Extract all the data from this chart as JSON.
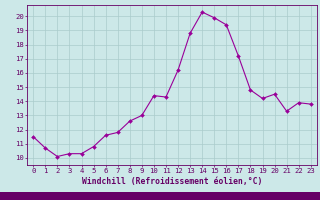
{
  "x": [
    0,
    1,
    2,
    3,
    4,
    5,
    6,
    7,
    8,
    9,
    10,
    11,
    12,
    13,
    14,
    15,
    16,
    17,
    18,
    19,
    20,
    21,
    22,
    23
  ],
  "y": [
    11.5,
    10.7,
    10.1,
    10.3,
    10.3,
    10.8,
    11.6,
    11.8,
    12.6,
    13.0,
    14.4,
    14.3,
    16.2,
    18.8,
    20.3,
    19.9,
    19.4,
    17.2,
    14.8,
    14.2,
    14.5,
    13.3,
    13.9,
    13.8
  ],
  "line_color": "#990099",
  "marker": "D",
  "marker_size": 2.0,
  "bg_color": "#cce8e8",
  "grid_color": "#aacccc",
  "axis_label_color": "#660066",
  "tick_color": "#660066",
  "xlabel": "Windchill (Refroidissement éolien,°C)",
  "bottom_bar_color": "#660066",
  "xlim": [
    -0.5,
    23.5
  ],
  "ylim": [
    9.5,
    20.8
  ],
  "yticks": [
    10,
    11,
    12,
    13,
    14,
    15,
    16,
    17,
    18,
    19,
    20
  ],
  "xticks": [
    0,
    1,
    2,
    3,
    4,
    5,
    6,
    7,
    8,
    9,
    10,
    11,
    12,
    13,
    14,
    15,
    16,
    17,
    18,
    19,
    20,
    21,
    22,
    23
  ],
  "tick_fontsize": 5.2,
  "xlabel_fontsize": 5.8
}
